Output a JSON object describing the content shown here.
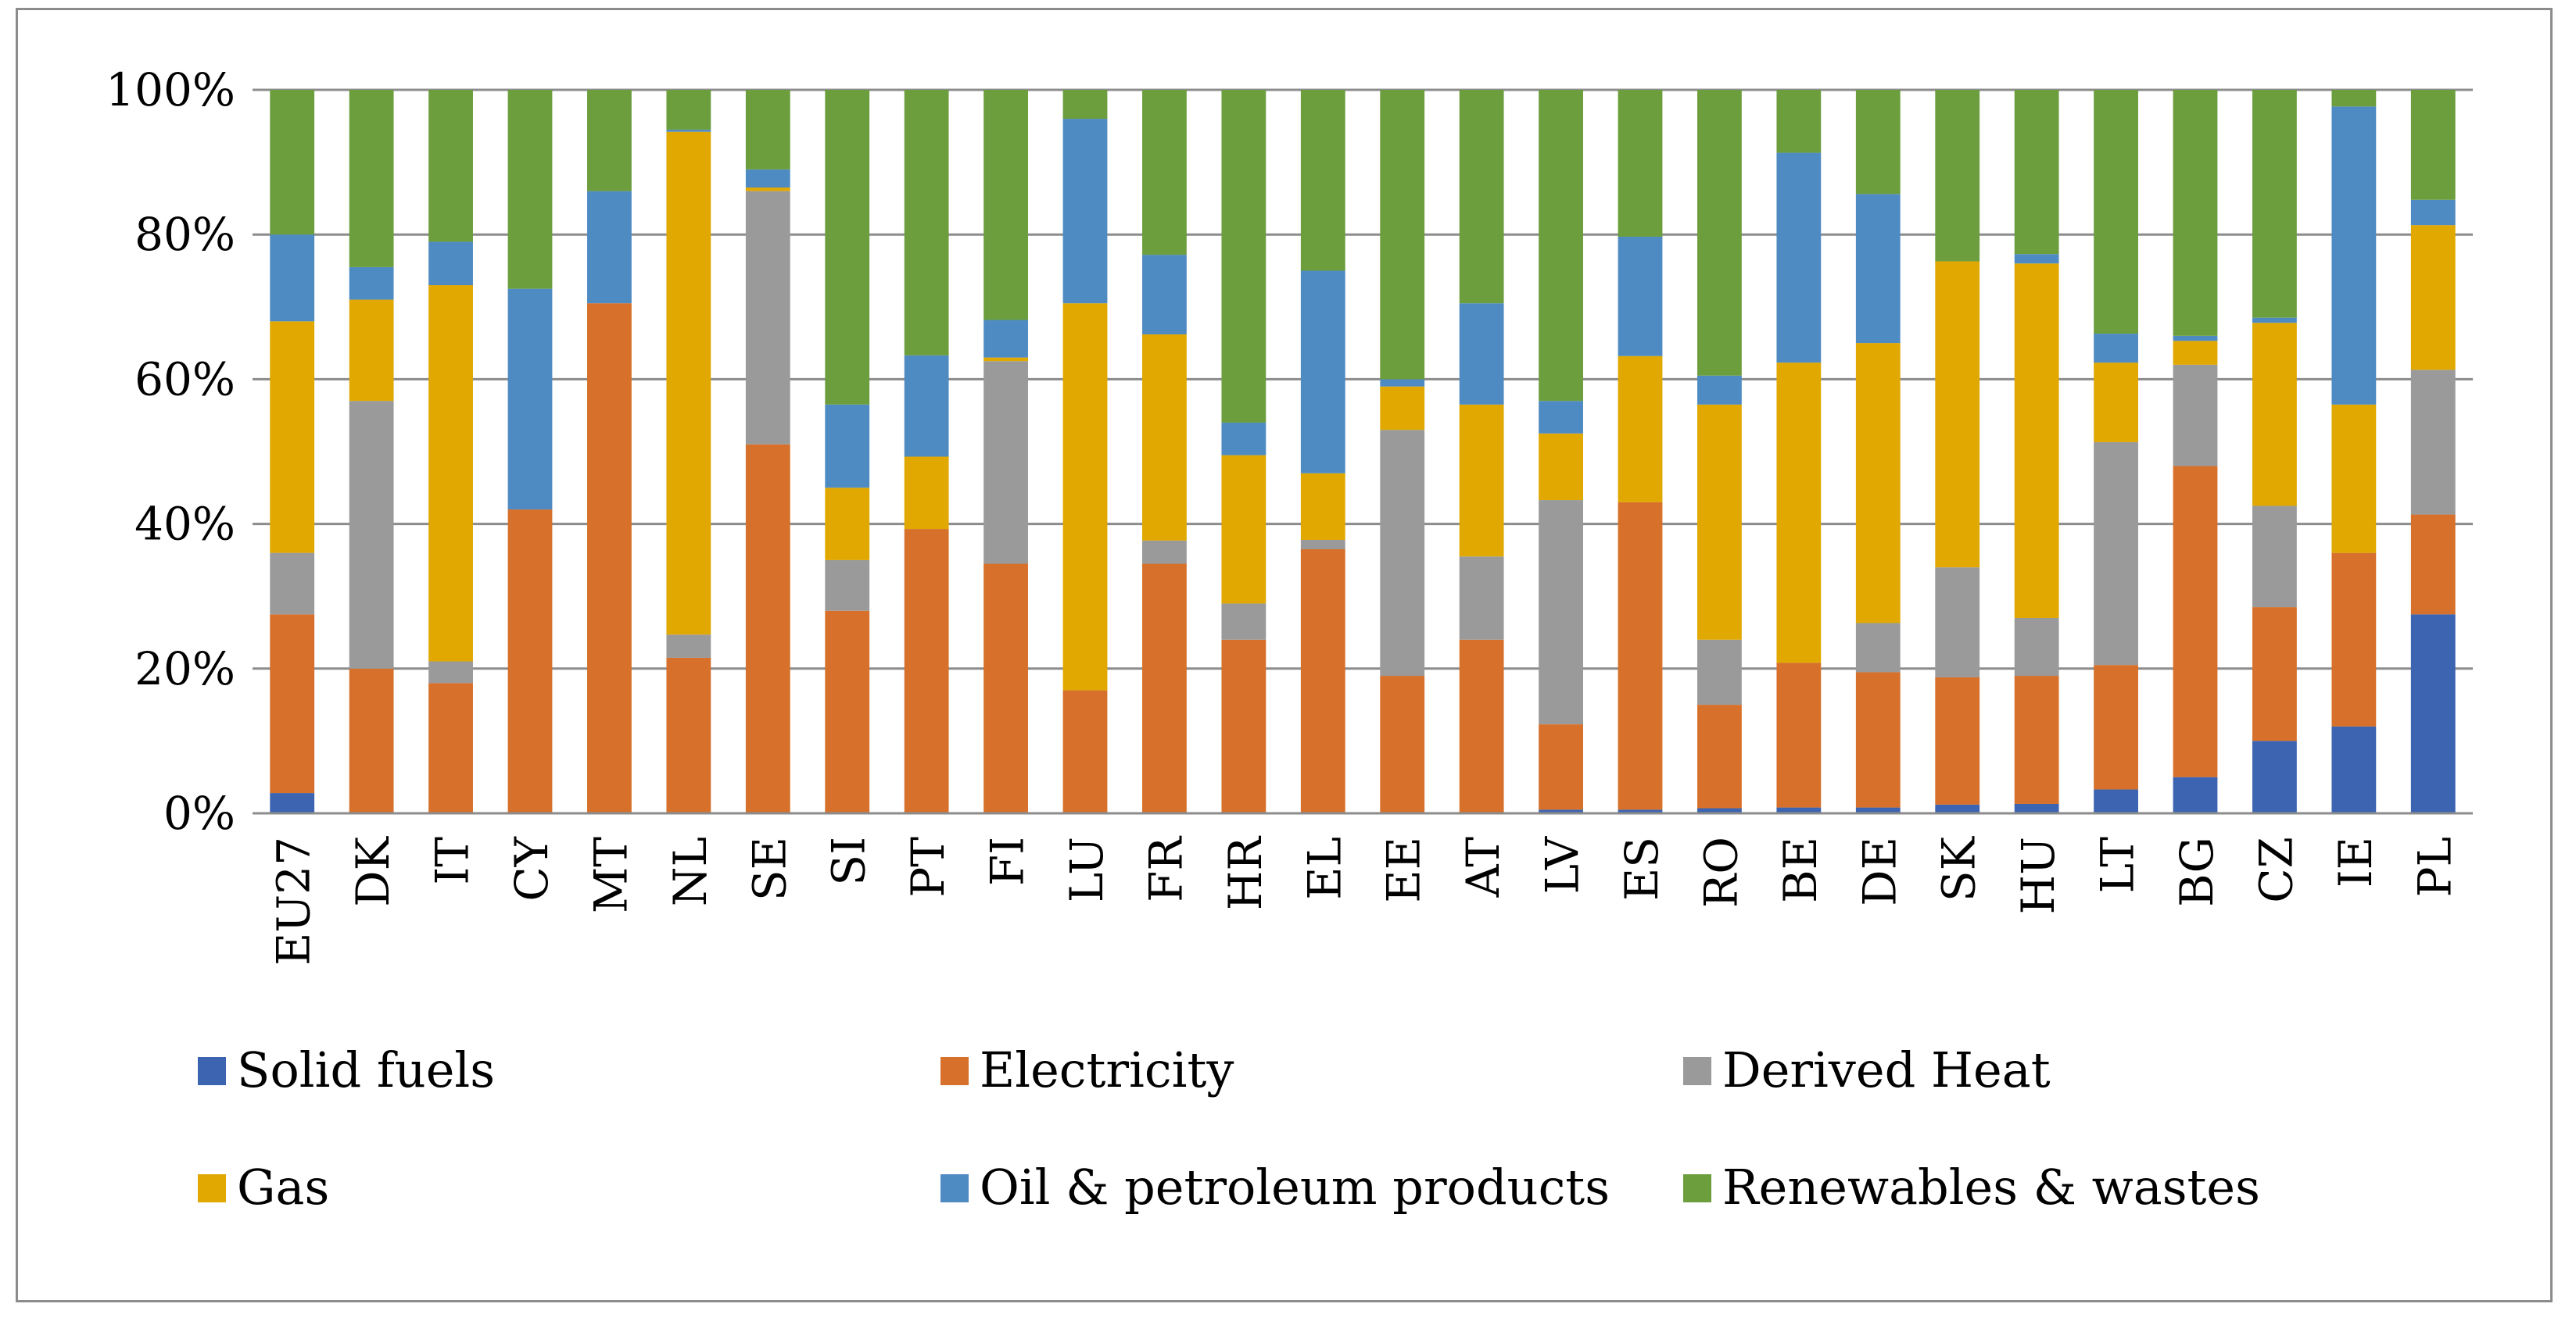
{
  "chart_data": {
    "type": "bar",
    "stacked": true,
    "categories": [
      "EU27",
      "DK",
      "IT",
      "CY",
      "MT",
      "NL",
      "SE",
      "SI",
      "PT",
      "FI",
      "LU",
      "FR",
      "HR",
      "EL",
      "EE",
      "AT",
      "LV",
      "ES",
      "RO",
      "BE",
      "DE",
      "SK",
      "HU",
      "LT",
      "BG",
      "CZ",
      "IE",
      "PL"
    ],
    "ylim": [
      0,
      100
    ],
    "yticks": [
      "0%",
      "20%",
      "40%",
      "60%",
      "80%",
      "100%"
    ],
    "grid": true,
    "legend_position": "bottom",
    "series": [
      {
        "name": "Solid fuels",
        "color": "#3c64b1",
        "values": [
          2.8,
          0,
          0,
          0,
          0,
          0,
          0,
          0,
          0,
          0,
          0,
          0,
          0,
          0,
          0,
          0,
          0.5,
          0.5,
          0.7,
          0.8,
          0.8,
          1.2,
          1.3,
          3.3,
          5,
          10,
          12,
          27.5
        ]
      },
      {
        "name": "Electricity",
        "color": "#d6702a",
        "values": [
          24.7,
          20,
          18,
          42,
          70.5,
          21.5,
          51,
          28,
          39.3,
          34.5,
          17,
          34.5,
          24,
          36.5,
          19,
          24,
          11.8,
          42.5,
          14.3,
          20,
          18.7,
          17.6,
          17.7,
          17.2,
          43,
          18.5,
          24,
          13.8
        ]
      },
      {
        "name": "Derived Heat",
        "color": "#9a9a9a",
        "values": [
          8.5,
          37,
          3,
          0,
          0,
          3.2,
          35,
          7,
          0,
          28,
          0,
          3.2,
          5,
          1.3,
          34,
          11.5,
          31,
          0,
          9,
          0,
          6.8,
          15.2,
          8,
          30.8,
          14,
          14,
          0,
          20
        ]
      },
      {
        "name": "Gas",
        "color": "#e0a800",
        "values": [
          32,
          14,
          52,
          0,
          0,
          69.5,
          0.5,
          10,
          10,
          0.5,
          53.5,
          28.5,
          20.5,
          9.2,
          6,
          21,
          9.2,
          20.2,
          32.5,
          41.5,
          38.7,
          42.3,
          49,
          11,
          3.3,
          25.3,
          20.5,
          20
        ]
      },
      {
        "name": "Oil & petroleum products",
        "color": "#4f8bc3",
        "values": [
          12,
          4.5,
          6,
          30.5,
          15.5,
          0.3,
          2.5,
          11.5,
          14,
          5.2,
          25.5,
          11,
          4.5,
          28,
          1,
          14,
          4.5,
          16.5,
          4,
          29,
          20.6,
          0,
          1.3,
          4,
          0.7,
          0.7,
          41.2,
          3.5
        ]
      },
      {
        "name": "Renewables & wastes",
        "color": "#6c9e3e",
        "values": [
          20,
          24.5,
          21,
          27.5,
          14,
          5.5,
          11,
          43.5,
          36.7,
          31.8,
          4,
          22.8,
          46,
          25,
          40,
          29.5,
          43,
          20.3,
          39.5,
          8.7,
          14.4,
          23.7,
          22.7,
          33.7,
          34,
          31.5,
          2.3,
          15.2
        ]
      }
    ]
  }
}
